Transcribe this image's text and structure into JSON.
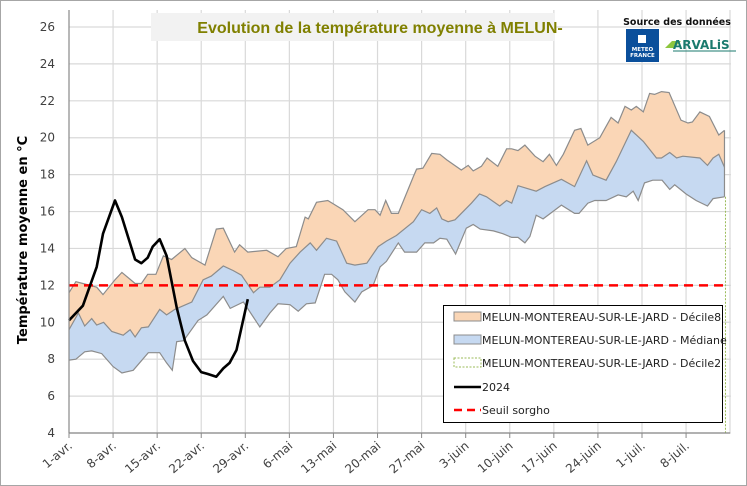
{
  "chart_data": {
    "type": "area",
    "title": "Evolution de la température moyenne à MELUN-",
    "source_label": "Source des données",
    "logos": [
      "METEO FRANCE",
      "ARVALIS"
    ],
    "ylabel": "Température moyenne en °C",
    "xlabel": "",
    "ylim": [
      4,
      27
    ],
    "yticks": [
      4,
      6,
      8,
      10,
      12,
      14,
      16,
      18,
      20,
      22,
      24,
      26
    ],
    "x_unit": "days since 1-avr.",
    "xlim": [
      0,
      104.5
    ],
    "xticks": [
      {
        "day": 0,
        "label": "1-avr."
      },
      {
        "day": 7,
        "label": "8-avr."
      },
      {
        "day": 14,
        "label": "15-avr."
      },
      {
        "day": 21,
        "label": "22-avr."
      },
      {
        "day": 28,
        "label": "29-avr."
      },
      {
        "day": 35,
        "label": "6-mai"
      },
      {
        "day": 42,
        "label": "13-mai"
      },
      {
        "day": 49,
        "label": "20-mai"
      },
      {
        "day": 56,
        "label": "27-mai"
      },
      {
        "day": 63,
        "label": "3-juin"
      },
      {
        "day": 70,
        "label": "10-juin"
      },
      {
        "day": 77,
        "label": "17-juin"
      },
      {
        "day": 84,
        "label": "24-juin"
      },
      {
        "day": 91,
        "label": "1-juil."
      },
      {
        "day": 98,
        "label": "8-juil."
      }
    ],
    "grid": true,
    "legend_position": "bottom-right",
    "colors": {
      "decile8": "#fad6b6",
      "mediane": "#c6d9f1",
      "decile2": "#9bbb59",
      "y2024": "#000000",
      "seuil": "#ff0000",
      "title": "#808000"
    },
    "series": [
      {
        "key": "decile8",
        "name": "MELUN-MONTEREAU-SUR-LE-JARD - Décile8",
        "points": [
          [
            0,
            11.6
          ],
          [
            1.1,
            12.2
          ],
          [
            2.2,
            12.1
          ],
          [
            4.4,
            11.9
          ],
          [
            5.4,
            11.5
          ],
          [
            7.3,
            12.3
          ],
          [
            8.4,
            12.7
          ],
          [
            10.5,
            12.1
          ],
          [
            11.5,
            12.1
          ],
          [
            12.5,
            12.6
          ],
          [
            13.8,
            12.6
          ],
          [
            15,
            13.6
          ],
          [
            16.3,
            13.4
          ],
          [
            18.4,
            14.0
          ],
          [
            19.5,
            13.5
          ],
          [
            21.6,
            13.1
          ],
          [
            23.4,
            15.05
          ],
          [
            24.5,
            15.1
          ],
          [
            26.3,
            13.8
          ],
          [
            27.1,
            14.2
          ],
          [
            28.4,
            13.8
          ],
          [
            31.4,
            13.9
          ],
          [
            33.2,
            13.55
          ],
          [
            34.5,
            14.0
          ],
          [
            36.1,
            14.1
          ],
          [
            37.5,
            15.7
          ],
          [
            38,
            15.6
          ],
          [
            39.3,
            16.5
          ],
          [
            41.1,
            16.6
          ],
          [
            43.5,
            16.1
          ],
          [
            45.4,
            15.45
          ],
          [
            47.5,
            16.1
          ],
          [
            48.6,
            16.1
          ],
          [
            49.4,
            15.8
          ],
          [
            50.3,
            16.6
          ],
          [
            51.2,
            15.9
          ],
          [
            52.3,
            15.9
          ],
          [
            54.7,
            17.9
          ],
          [
            55.2,
            18.3
          ],
          [
            56.2,
            18.35
          ],
          [
            57.6,
            19.15
          ],
          [
            58.9,
            19.1
          ],
          [
            60,
            18.8
          ],
          [
            62.3,
            18.25
          ],
          [
            63.4,
            18.5
          ],
          [
            64.2,
            18.2
          ],
          [
            65.5,
            18.45
          ],
          [
            66.4,
            18.9
          ],
          [
            68.1,
            18.45
          ],
          [
            69.5,
            19.4
          ],
          [
            70.3,
            19.4
          ],
          [
            71.3,
            19.3
          ],
          [
            72.4,
            19.6
          ],
          [
            74,
            19.0
          ],
          [
            75.3,
            18.7
          ],
          [
            76.3,
            19.1
          ],
          [
            77.4,
            18.5
          ],
          [
            78.5,
            19.1
          ],
          [
            80.3,
            20.4
          ],
          [
            81.3,
            20.5
          ],
          [
            82.4,
            19.6
          ],
          [
            84.3,
            20.0
          ],
          [
            86.1,
            21.1
          ],
          [
            87.2,
            20.8
          ],
          [
            88.3,
            21.7
          ],
          [
            89.3,
            21.5
          ],
          [
            90.1,
            21.7
          ],
          [
            91.2,
            21.4
          ],
          [
            92.2,
            22.4
          ],
          [
            93,
            22.35
          ],
          [
            94.1,
            22.5
          ],
          [
            95.3,
            22.45
          ],
          [
            97.2,
            20.95
          ],
          [
            98.3,
            20.8
          ],
          [
            99,
            20.85
          ],
          [
            100.2,
            21.4
          ],
          [
            101.7,
            21.15
          ],
          [
            103.2,
            20.15
          ],
          [
            104.1,
            20.4
          ]
        ]
      },
      {
        "key": "mediane",
        "name": "MELUN-MONTEREAU-SUR-LE-JARD - Médiane",
        "points": [
          [
            0,
            9.6
          ],
          [
            1.5,
            10.5
          ],
          [
            2.5,
            9.8
          ],
          [
            3.6,
            10.2
          ],
          [
            4.4,
            9.85
          ],
          [
            5.5,
            10.0
          ],
          [
            6.8,
            9.5
          ],
          [
            8.6,
            9.3
          ],
          [
            9.7,
            9.6
          ],
          [
            10.5,
            9.2
          ],
          [
            11.5,
            9.7
          ],
          [
            12.6,
            9.75
          ],
          [
            14.4,
            10.7
          ],
          [
            15.5,
            10.4
          ],
          [
            16.8,
            10.7
          ],
          [
            19.5,
            11.1
          ],
          [
            21.3,
            12.3
          ],
          [
            22.6,
            12.5
          ],
          [
            24.5,
            13.05
          ],
          [
            26.1,
            12.8
          ],
          [
            27.4,
            12.55
          ],
          [
            29.3,
            11.6
          ],
          [
            30.3,
            11.9
          ],
          [
            31.9,
            11.9
          ],
          [
            33.5,
            12.3
          ],
          [
            35.1,
            13.2
          ],
          [
            36.7,
            13.8
          ],
          [
            38.3,
            14.3
          ],
          [
            39.3,
            13.9
          ],
          [
            40.9,
            14.55
          ],
          [
            42.5,
            14.4
          ],
          [
            44.1,
            13.2
          ],
          [
            45.4,
            13.1
          ],
          [
            47.3,
            13.2
          ],
          [
            49.1,
            14.1
          ],
          [
            50.4,
            14.4
          ],
          [
            52,
            14.7
          ],
          [
            54.7,
            15.45
          ],
          [
            56,
            16.1
          ],
          [
            57.3,
            15.9
          ],
          [
            58.4,
            16.2
          ],
          [
            59.2,
            15.6
          ],
          [
            60.2,
            15.45
          ],
          [
            61.3,
            15.55
          ],
          [
            63.9,
            16.45
          ],
          [
            65.2,
            16.95
          ],
          [
            66.3,
            16.8
          ],
          [
            68.4,
            16.3
          ],
          [
            69.5,
            16.6
          ],
          [
            70.3,
            16.45
          ],
          [
            71.3,
            17.4
          ],
          [
            74.2,
            17.1
          ],
          [
            75.6,
            17.35
          ],
          [
            78.2,
            17.75
          ],
          [
            80.3,
            17.35
          ],
          [
            82.2,
            18.75
          ],
          [
            83.2,
            17.98
          ],
          [
            85.3,
            17.7
          ],
          [
            86.9,
            18.7
          ],
          [
            89.3,
            20.4
          ],
          [
            91.2,
            19.8
          ],
          [
            93.3,
            18.9
          ],
          [
            94.1,
            18.9
          ],
          [
            95.4,
            19.2
          ],
          [
            96.5,
            18.9
          ],
          [
            97.5,
            19.0
          ],
          [
            100.2,
            18.9
          ],
          [
            101.4,
            18.5
          ],
          [
            102.3,
            18.9
          ],
          [
            103.2,
            19.1
          ],
          [
            104.1,
            18.4
          ]
        ]
      },
      {
        "key": "decile2",
        "name": "MELUN-MONTEREAU-SUR-LE-JARD - Décile2",
        "points": [
          [
            0,
            7.95
          ],
          [
            1.1,
            8.0
          ],
          [
            2.5,
            8.4
          ],
          [
            3.6,
            8.45
          ],
          [
            5.2,
            8.3
          ],
          [
            7,
            7.6
          ],
          [
            8.4,
            7.25
          ],
          [
            10.2,
            7.4
          ],
          [
            12.6,
            8.35
          ],
          [
            14.4,
            8.35
          ],
          [
            15.5,
            7.8
          ],
          [
            16.4,
            7.4
          ],
          [
            17.1,
            8.95
          ],
          [
            18.2,
            9.0
          ],
          [
            20.5,
            10.1
          ],
          [
            21.9,
            10.4
          ],
          [
            24.5,
            11.4
          ],
          [
            25.6,
            10.75
          ],
          [
            27.7,
            11.1
          ],
          [
            30.3,
            9.75
          ],
          [
            31.9,
            10.5
          ],
          [
            33.2,
            11.0
          ],
          [
            35.1,
            10.95
          ],
          [
            36.4,
            10.6
          ],
          [
            37.7,
            11.0
          ],
          [
            39.1,
            11.05
          ],
          [
            40.6,
            12.6
          ],
          [
            41.7,
            12.6
          ],
          [
            42.7,
            12.3
          ],
          [
            43.8,
            11.65
          ],
          [
            45.4,
            11.1
          ],
          [
            46.5,
            11.65
          ],
          [
            48.3,
            12.0
          ],
          [
            49.4,
            13.0
          ],
          [
            50.4,
            13.3
          ],
          [
            52.3,
            14.3
          ],
          [
            53.3,
            13.8
          ],
          [
            55.2,
            13.8
          ],
          [
            56.5,
            14.3
          ],
          [
            57.9,
            14.3
          ],
          [
            58.9,
            14.55
          ],
          [
            60,
            14.5
          ],
          [
            61.4,
            13.7
          ],
          [
            63.1,
            15.1
          ],
          [
            64.2,
            15.3
          ],
          [
            65.3,
            15.05
          ],
          [
            67.4,
            14.95
          ],
          [
            68.9,
            14.8
          ],
          [
            70.3,
            14.6
          ],
          [
            71.3,
            14.6
          ],
          [
            72.4,
            14.3
          ],
          [
            73.2,
            14.65
          ],
          [
            74.2,
            15.8
          ],
          [
            75.3,
            15.6
          ],
          [
            78.2,
            16.35
          ],
          [
            80.3,
            15.9
          ],
          [
            81,
            15.9
          ],
          [
            82.4,
            16.45
          ],
          [
            83.5,
            16.6
          ],
          [
            85.3,
            16.6
          ],
          [
            87.2,
            16.9
          ],
          [
            88.5,
            16.8
          ],
          [
            89.6,
            17.1
          ],
          [
            90.4,
            16.6
          ],
          [
            91.4,
            17.55
          ],
          [
            92.7,
            17.7
          ],
          [
            94.2,
            17.7
          ],
          [
            95.4,
            17.2
          ],
          [
            96.2,
            17.45
          ],
          [
            98,
            16.95
          ],
          [
            99.6,
            16.6
          ],
          [
            101.4,
            16.3
          ],
          [
            102.3,
            16.7
          ],
          [
            104.1,
            16.8
          ]
        ]
      },
      {
        "key": "y2024",
        "name": "2024",
        "points": [
          [
            0,
            10.1
          ],
          [
            2.2,
            10.9
          ],
          [
            4.4,
            13.0
          ],
          [
            5.4,
            14.8
          ],
          [
            7.3,
            16.6
          ],
          [
            8.4,
            15.7
          ],
          [
            10.5,
            13.4
          ],
          [
            11.5,
            13.2
          ],
          [
            12.5,
            13.5
          ],
          [
            13.3,
            14.1
          ],
          [
            14.4,
            14.5
          ],
          [
            15.5,
            13.6
          ],
          [
            17.1,
            10.8
          ],
          [
            18.4,
            9.0
          ],
          [
            19.7,
            7.9
          ],
          [
            21,
            7.3
          ],
          [
            22,
            7.2
          ],
          [
            23.4,
            7.05
          ],
          [
            24.5,
            7.5
          ],
          [
            25.5,
            7.8
          ],
          [
            26.6,
            8.5
          ],
          [
            28.4,
            11.25
          ]
        ]
      },
      {
        "key": "seuil",
        "name": "Seuil sorgho",
        "constant": 12
      }
    ]
  }
}
